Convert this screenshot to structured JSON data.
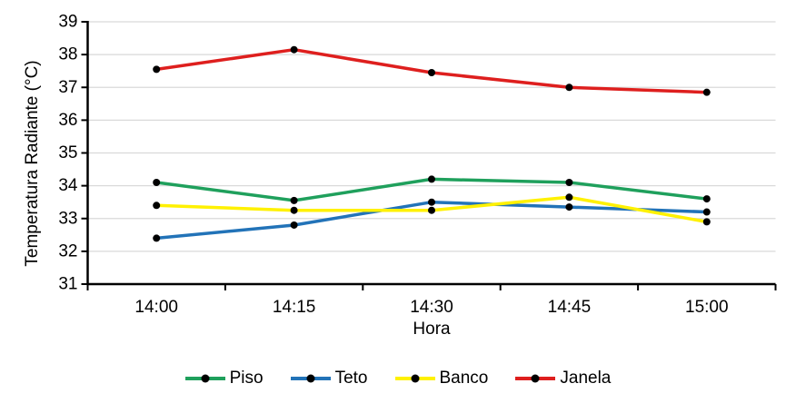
{
  "chart_data": {
    "type": "line",
    "title": "",
    "xlabel": "Hora",
    "ylabel": "Temperatura Radiante (°C)",
    "categories": [
      "14:00",
      "14:15",
      "14:30",
      "14:45",
      "15:00"
    ],
    "ylim": [
      31,
      39
    ],
    "yticks": [
      31,
      32,
      33,
      34,
      35,
      36,
      37,
      38,
      39
    ],
    "grid": "horizontal",
    "legend_position": "bottom",
    "marker": "black-filled-circle",
    "series": [
      {
        "name": "Piso",
        "color": "#1FA05C",
        "values": [
          34.1,
          33.55,
          34.2,
          34.1,
          33.6
        ]
      },
      {
        "name": "Teto",
        "color": "#2273B8",
        "values": [
          32.4,
          32.8,
          33.5,
          33.35,
          33.2
        ]
      },
      {
        "name": "Banco",
        "color": "#FFF100",
        "values": [
          33.4,
          33.25,
          33.25,
          33.65,
          32.9
        ]
      },
      {
        "name": "Janela",
        "color": "#DE1F1E",
        "values": [
          37.55,
          38.15,
          37.45,
          37.0,
          36.85
        ]
      }
    ],
    "colors": {
      "axis": "#000000",
      "gridline": "#D9D9D9",
      "marker": "#000000",
      "text": "#000000",
      "background": "#FFFFFF"
    }
  }
}
